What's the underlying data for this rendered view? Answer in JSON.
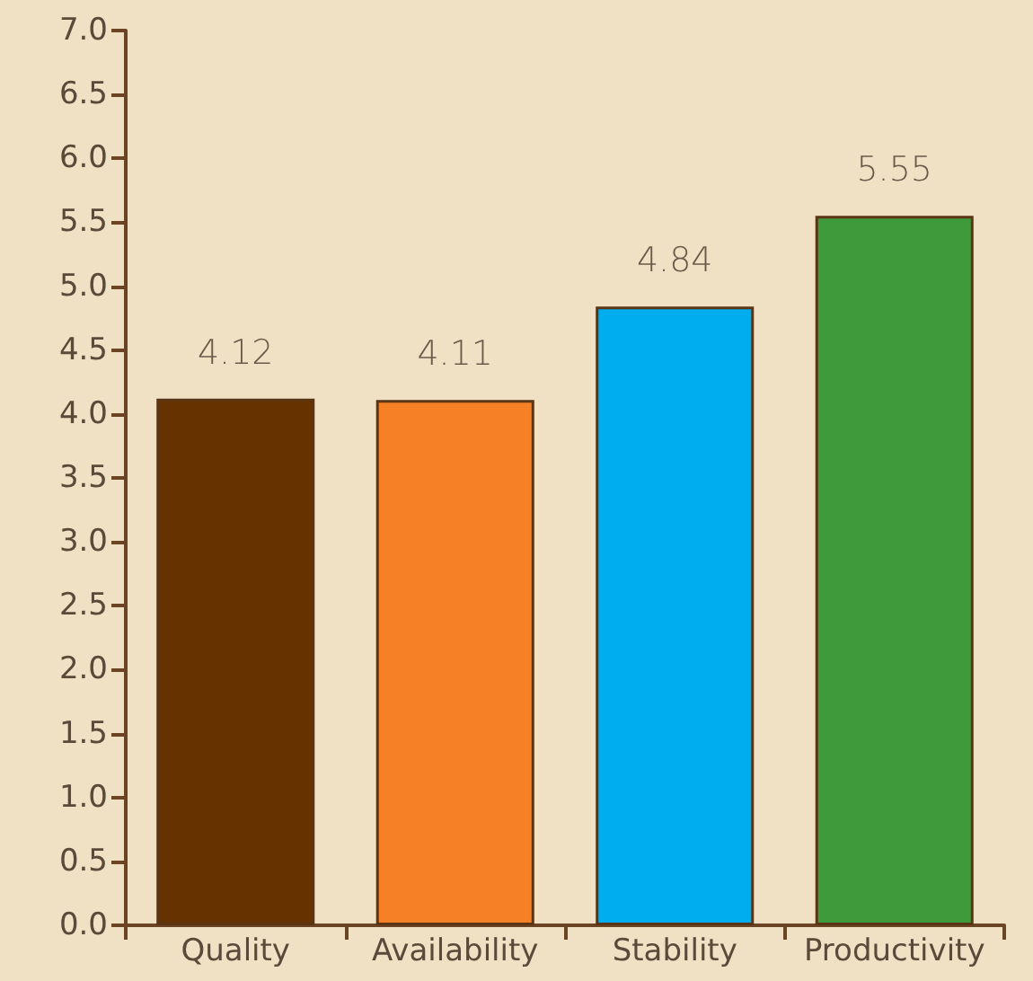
{
  "chart_data": {
    "type": "bar",
    "categories": [
      "Quality",
      "Availability",
      "Stability",
      "Productivity"
    ],
    "values": [
      4.12,
      4.11,
      4.84,
      5.55
    ],
    "colors": [
      "#663300",
      "#f58025",
      "#00aeef",
      "#3f9a3b"
    ],
    "ylim": [
      0,
      7
    ],
    "yticks": [
      {
        "value": 0,
        "label": "0.0"
      },
      {
        "value": 0.5,
        "label": "0.5"
      },
      {
        "value": 1,
        "label": "1.0"
      },
      {
        "value": 1.5,
        "label": "1.5"
      },
      {
        "value": 2,
        "label": "2.0"
      },
      {
        "value": 2.5,
        "label": "2.5"
      },
      {
        "value": 3,
        "label": "3.0"
      },
      {
        "value": 3.5,
        "label": "3.5"
      },
      {
        "value": 4,
        "label": "4.0"
      },
      {
        "value": 4.5,
        "label": "4.5"
      },
      {
        "value": 5,
        "label": "5.0"
      },
      {
        "value": 5.5,
        "label": "5.5"
      },
      {
        "value": 6,
        "label": "6.0"
      },
      {
        "value": 6.5,
        "label": "6.5"
      },
      {
        "value": 7,
        "label": "7.0"
      }
    ],
    "data_labels": true
  }
}
